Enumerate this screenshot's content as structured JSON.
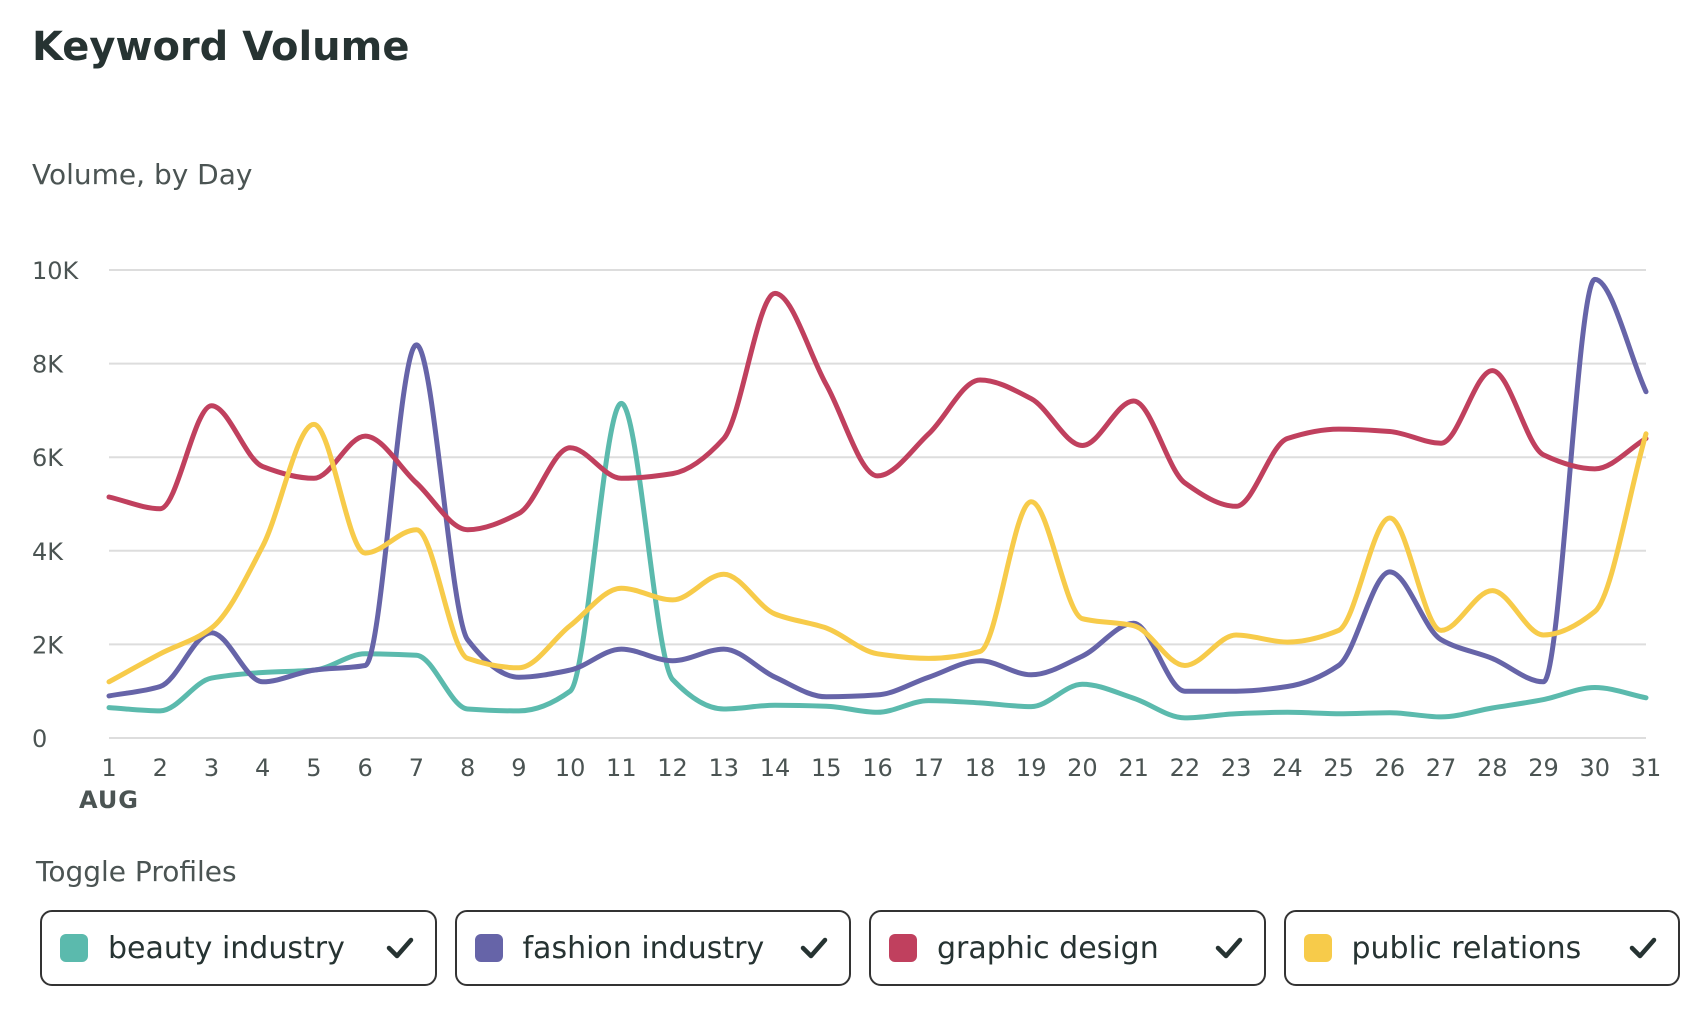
{
  "header": {
    "title": "Keyword Volume",
    "subtitle": "Volume, by Day"
  },
  "toggles": {
    "title": "Toggle Profiles",
    "items": [
      {
        "label": "beauty industry",
        "color": "#5bbaad",
        "checked": true
      },
      {
        "label": "fashion industry",
        "color": "#6664a8",
        "checked": true
      },
      {
        "label": "graphic design",
        "color": "#c0405e",
        "checked": true
      },
      {
        "label": "public relations",
        "color": "#f7cb4a",
        "checked": true
      }
    ]
  },
  "chart_data": {
    "type": "line",
    "title": "Volume, by Day",
    "xlabel": "AUG",
    "ylabel": "",
    "categories": [
      "1",
      "2",
      "3",
      "4",
      "5",
      "6",
      "7",
      "8",
      "9",
      "10",
      "11",
      "12",
      "13",
      "14",
      "15",
      "16",
      "17",
      "18",
      "19",
      "20",
      "21",
      "22",
      "23",
      "24",
      "25",
      "26",
      "27",
      "28",
      "29",
      "30",
      "31"
    ],
    "ylim": [
      0,
      10000
    ],
    "yticks": [
      0,
      2000,
      4000,
      6000,
      8000,
      10000
    ],
    "ytick_labels": [
      "0",
      "2K",
      "4K",
      "6K",
      "8K",
      "10K"
    ],
    "grid": true,
    "series": [
      {
        "name": "beauty industry",
        "color": "#5bbaad",
        "values": [
          650,
          580,
          1280,
          1400,
          1450,
          1800,
          1770,
          620,
          580,
          1000,
          7150,
          1250,
          620,
          700,
          680,
          550,
          800,
          750,
          670,
          1150,
          850,
          430,
          520,
          550,
          520,
          540,
          450,
          640,
          820,
          1080,
          860
        ]
      },
      {
        "name": "fashion industry",
        "color": "#6664a8",
        "values": [
          900,
          1100,
          2250,
          1200,
          1450,
          1550,
          8400,
          2100,
          1300,
          1450,
          1900,
          1650,
          1900,
          1300,
          880,
          920,
          1300,
          1650,
          1350,
          1750,
          2450,
          1000,
          1000,
          1100,
          1550,
          3550,
          2100,
          1700,
          1200,
          9800,
          7400
        ]
      },
      {
        "name": "graphic design",
        "color": "#c0405e",
        "values": [
          5150,
          4900,
          7100,
          5800,
          5550,
          6450,
          5450,
          4450,
          4800,
          6200,
          5550,
          5650,
          6400,
          9500,
          7550,
          5600,
          6500,
          7650,
          7250,
          6250,
          7200,
          5450,
          4950,
          6400,
          6600,
          6550,
          6300,
          7850,
          6050,
          5750,
          6400
        ]
      },
      {
        "name": "public relations",
        "color": "#f7cb4a",
        "values": [
          1200,
          1800,
          2350,
          4100,
          6700,
          3950,
          4450,
          1700,
          1500,
          2400,
          3200,
          2950,
          3500,
          2650,
          2350,
          1800,
          1700,
          1850,
          5050,
          2550,
          2400,
          1550,
          2200,
          2050,
          2300,
          4700,
          2300,
          3150,
          2200,
          2700,
          6500
        ]
      }
    ]
  }
}
